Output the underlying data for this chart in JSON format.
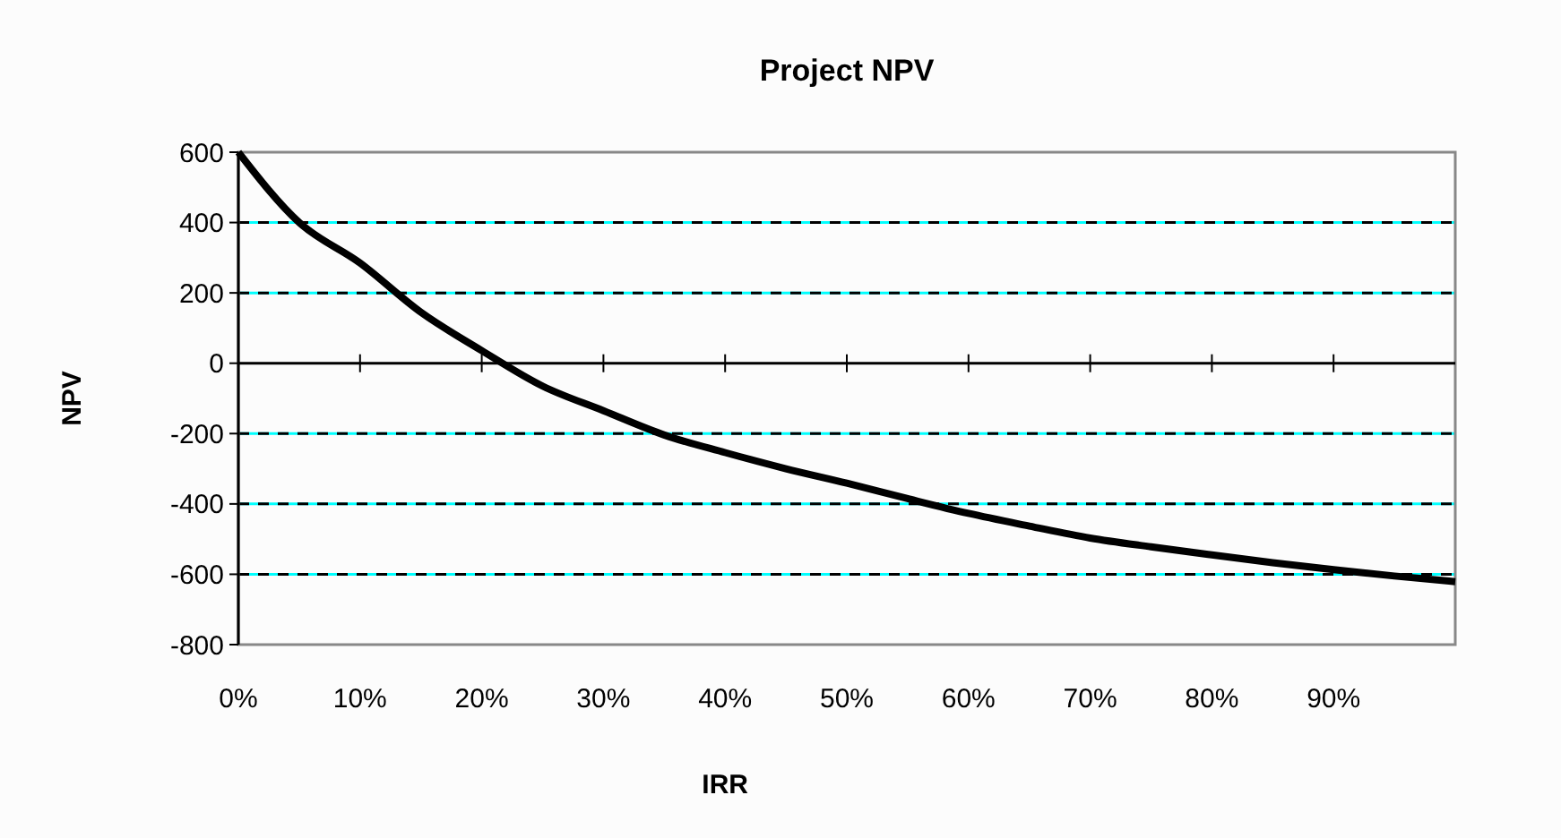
{
  "chart_data": {
    "type": "line",
    "title": "Project NPV",
    "xlabel": "IRR",
    "ylabel": "NPV",
    "x": [
      0,
      5,
      10,
      15,
      20,
      25,
      30,
      35,
      40,
      45,
      50,
      55,
      60,
      65,
      70,
      75,
      80,
      85,
      90,
      95,
      100
    ],
    "series": [
      {
        "color": "#000000",
        "values": [
          600,
          400,
          285,
          145,
          36,
          -65,
          -135,
          -204,
          -254,
          -300,
          -341,
          -385,
          -427,
          -463,
          -497,
          -522,
          -545,
          -567,
          -587,
          -605,
          -621
        ]
      }
    ],
    "xlim": [
      0,
      100
    ],
    "xticks": [
      {
        "value": 0,
        "label": "0%"
      },
      {
        "value": 10,
        "label": "10%"
      },
      {
        "value": 20,
        "label": "20%"
      },
      {
        "value": 30,
        "label": "30%"
      },
      {
        "value": 40,
        "label": "40%"
      },
      {
        "value": 50,
        "label": "50%"
      },
      {
        "value": 60,
        "label": "60%"
      },
      {
        "value": 70,
        "label": "70%"
      },
      {
        "value": 80,
        "label": "80%"
      },
      {
        "value": 90,
        "label": "90%"
      }
    ],
    "ylim": [
      -800,
      600
    ],
    "yticks": [
      -800,
      -600,
      -400,
      -200,
      0,
      200,
      400,
      600
    ],
    "grid": "y",
    "line_style": "solid",
    "marker": "none"
  }
}
